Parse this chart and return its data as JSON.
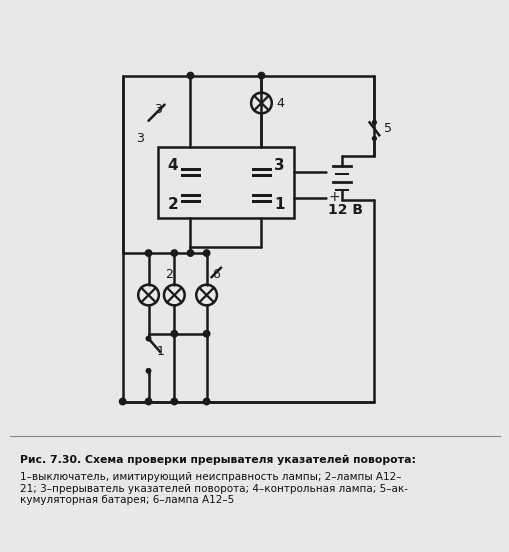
{
  "fig_width": 5.1,
  "fig_height": 5.52,
  "dpi": 100,
  "bg_color": "#e8e8e8",
  "diagram_bg": "#f0f0f0",
  "line_color": "#1a1a1a",
  "line_width": 1.8,
  "caption_title": "Рис. 7.30. Схема проверки прерывателя указателей поворота:",
  "caption_body": "1–выключатель, имитирующий неисправность лампы; 2–лампы А12–\n21; 3–прерыватель указателей поворота; 4–контрольная лампа; 5–ак-\nкумуляторная батарея; 6–лампа А12–5",
  "caption_fontsize": 7.5,
  "caption_title_fontsize": 7.8
}
